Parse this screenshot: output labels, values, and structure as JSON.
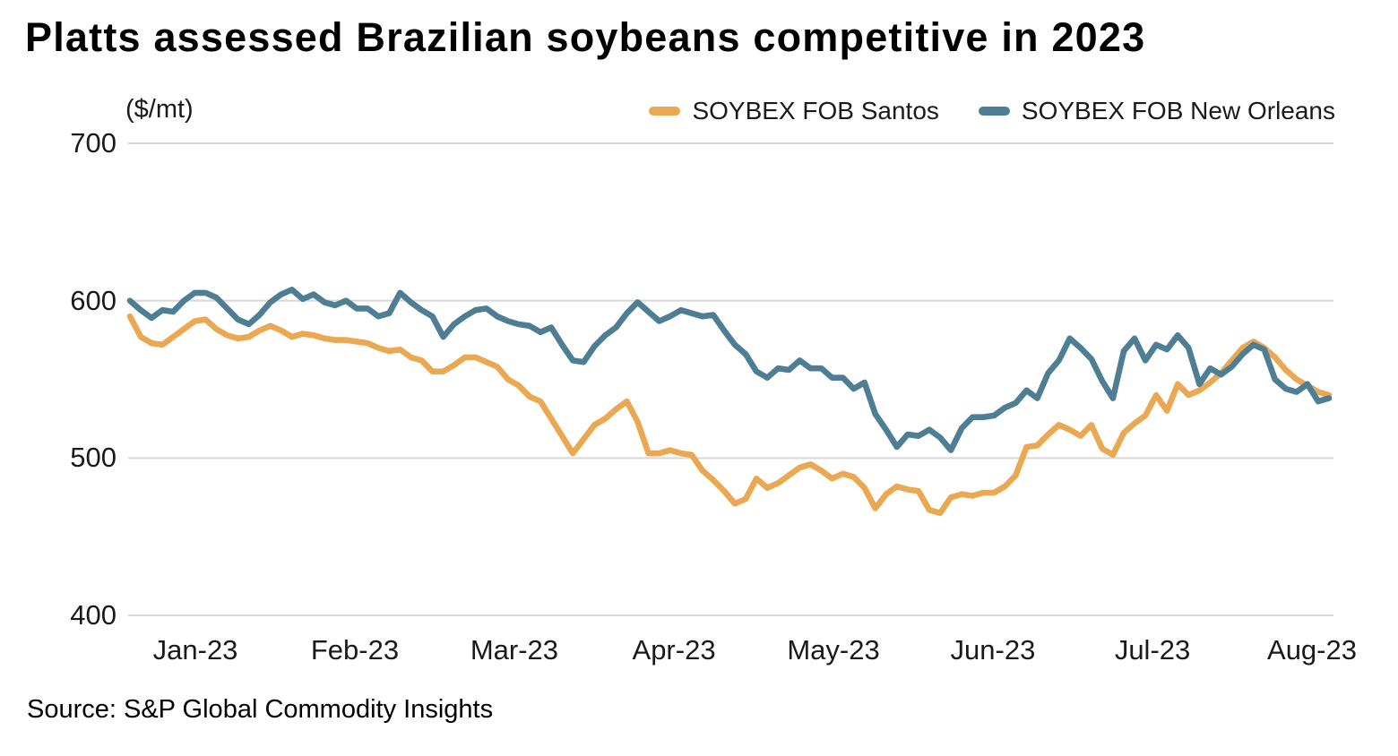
{
  "title": "Platts assessed Brazilian soybeans competitive in 2023",
  "source": "Source: S&P Global Commodity Insights",
  "colors": {
    "santos": "#E9A851",
    "new_orleans": "#4D7E94",
    "gridline": "#D8D8D8",
    "axis_text": "#1A1A1A",
    "title_text": "#000000",
    "background": "#FFFFFF"
  },
  "chart_data": {
    "type": "line",
    "title": "Platts assessed Brazilian soybeans competitive in 2023",
    "unit_label": "($/mt)",
    "ylabel": "($/mt)",
    "xlabel": "",
    "ylim": [
      400,
      700
    ],
    "y_ticks": [
      700,
      600,
      500,
      400
    ],
    "grid": "horizontal",
    "legend_position": "top",
    "x_ticks": [
      {
        "label": "Jan-23",
        "f": 0.0546
      },
      {
        "label": "Feb-23",
        "f": 0.1876
      },
      {
        "label": "Mar-23",
        "f": 0.3206
      },
      {
        "label": "Apr-23",
        "f": 0.4537
      },
      {
        "label": "May-23",
        "f": 0.5867
      },
      {
        "label": "Jun-23",
        "f": 0.7197
      },
      {
        "label": "Jul-23",
        "f": 0.8528
      },
      {
        "label": "Aug-23",
        "f": 0.9858
      }
    ],
    "sampling": "values are daily assessments resampled evenly across the date axis (early Jan 2023 to mid Aug 2023)",
    "series": [
      {
        "name": "SOYBEX FOB Santos",
        "color": "#E9A851",
        "values": [
          590,
          577,
          573,
          572,
          577,
          582,
          587,
          588,
          582,
          578,
          576,
          577,
          581,
          584,
          581,
          577,
          579,
          578,
          576,
          575,
          575,
          574,
          573,
          570,
          568,
          569,
          564,
          562,
          555,
          555,
          559,
          564,
          564,
          561,
          558,
          550,
          546,
          539,
          536,
          525,
          514,
          503,
          512,
          521,
          525,
          531,
          536,
          523,
          503,
          503,
          505,
          503,
          502,
          492,
          486,
          479,
          471,
          474,
          487,
          481,
          484,
          489,
          494,
          496,
          492,
          487,
          490,
          488,
          481,
          468,
          477,
          482,
          480,
          479,
          467,
          465,
          475,
          477,
          476,
          478,
          478,
          482,
          489,
          507,
          508,
          515,
          521,
          518,
          514,
          521,
          506,
          502,
          516,
          522,
          527,
          540,
          530,
          547,
          540,
          543,
          548,
          554,
          562,
          570,
          574,
          570,
          564,
          556,
          550,
          546,
          542,
          540
        ]
      },
      {
        "name": "SOYBEX FOB New Orleans",
        "color": "#4D7E94",
        "values": [
          600,
          594,
          589,
          594,
          593,
          600,
          605,
          605,
          602,
          595,
          588,
          585,
          591,
          599,
          604,
          607,
          601,
          604,
          599,
          597,
          600,
          595,
          595,
          590,
          592,
          605,
          599,
          594,
          590,
          577,
          585,
          590,
          594,
          595,
          590,
          587,
          585,
          584,
          580,
          583,
          572,
          562,
          561,
          571,
          578,
          583,
          592,
          599,
          593,
          587,
          590,
          594,
          592,
          590,
          591,
          581,
          572,
          566,
          555,
          551,
          557,
          556,
          562,
          557,
          557,
          551,
          551,
          544,
          548,
          528,
          518,
          507,
          515,
          514,
          518,
          513,
          505,
          519,
          526,
          526,
          527,
          532,
          535,
          543,
          538,
          554,
          562,
          576,
          570,
          563,
          549,
          538,
          568,
          576,
          562,
          572,
          569,
          578,
          570,
          547,
          557,
          553,
          558,
          566,
          572,
          569,
          550,
          544,
          542,
          547,
          536,
          538
        ]
      }
    ]
  }
}
